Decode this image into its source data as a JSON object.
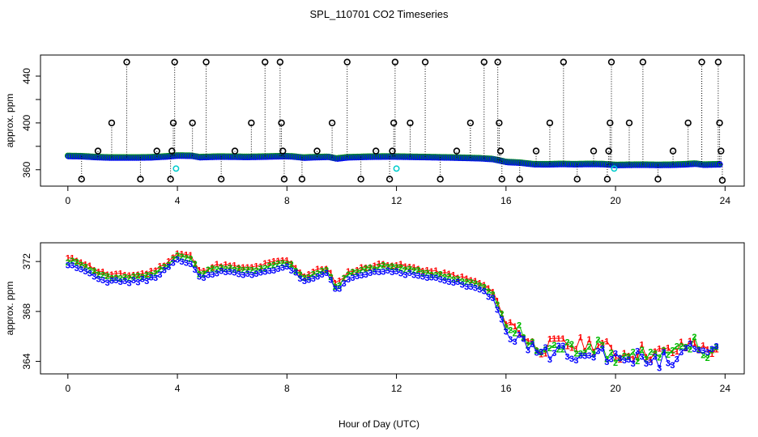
{
  "figure": {
    "title": "SPL_110701  CO2 Timeseries",
    "xlabel": "Hour of Day (UTC)"
  },
  "chart_data": [
    {
      "id": "top",
      "type": "scatter",
      "ylabel": "approx. ppm",
      "xlim": [
        -1.0,
        24.7
      ],
      "ylim": [
        346,
        458
      ],
      "x_ticks": [
        0,
        4,
        8,
        12,
        16,
        20,
        24
      ],
      "y_ticks": [
        360,
        400,
        440
      ],
      "y_minor_ticks": [
        380,
        420
      ],
      "baseline": 372,
      "spikes_high": [
        [
          1.1,
          376
        ],
        [
          1.6,
          400
        ],
        [
          2.15,
          452
        ],
        [
          3.25,
          376
        ],
        [
          3.8,
          376
        ],
        [
          3.85,
          400
        ],
        [
          3.9,
          452
        ],
        [
          4.55,
          400
        ],
        [
          5.05,
          452
        ],
        [
          6.1,
          376
        ],
        [
          6.7,
          400
        ],
        [
          7.2,
          452
        ],
        [
          7.75,
          452
        ],
        [
          7.8,
          400
        ],
        [
          7.85,
          376
        ],
        [
          9.1,
          376
        ],
        [
          9.65,
          400
        ],
        [
          10.2,
          452
        ],
        [
          11.25,
          376
        ],
        [
          11.85,
          376
        ],
        [
          11.9,
          400
        ],
        [
          11.95,
          452
        ],
        [
          12.5,
          400
        ],
        [
          13.05,
          452
        ],
        [
          14.2,
          376
        ],
        [
          14.7,
          400
        ],
        [
          15.2,
          452
        ],
        [
          15.7,
          452
        ],
        [
          15.75,
          400
        ],
        [
          15.8,
          376
        ],
        [
          17.1,
          376
        ],
        [
          17.6,
          400
        ],
        [
          18.1,
          452
        ],
        [
          19.2,
          376
        ],
        [
          19.75,
          376
        ],
        [
          19.8,
          400
        ],
        [
          19.85,
          452
        ],
        [
          20.5,
          400
        ],
        [
          21.0,
          452
        ],
        [
          22.1,
          376
        ],
        [
          22.65,
          400
        ],
        [
          23.15,
          452
        ],
        [
          23.75,
          452
        ],
        [
          23.8,
          400
        ],
        [
          23.85,
          376
        ]
      ],
      "spikes_low": [
        [
          0.5,
          352
        ],
        [
          2.65,
          352
        ],
        [
          3.75,
          352
        ],
        [
          5.6,
          352
        ],
        [
          7.9,
          352
        ],
        [
          8.55,
          352
        ],
        [
          10.7,
          352
        ],
        [
          11.75,
          352
        ],
        [
          13.6,
          352
        ],
        [
          15.85,
          352
        ],
        [
          16.5,
          352
        ],
        [
          18.6,
          352
        ],
        [
          19.7,
          352
        ],
        [
          21.55,
          352
        ],
        [
          23.9,
          351
        ]
      ],
      "cyan_points": [
        [
          3.95,
          361
        ],
        [
          12.0,
          361
        ],
        [
          19.95,
          361
        ]
      ]
    },
    {
      "id": "bottom",
      "type": "line",
      "ylabel": "approx. ppm",
      "xlim": [
        -1.0,
        24.7
      ],
      "ylim": [
        363.0,
        373.5
      ],
      "x_ticks": [
        0,
        4,
        8,
        12,
        16,
        20,
        24
      ],
      "y_ticks": [
        364,
        368,
        372
      ],
      "series": [
        {
          "name": "1",
          "color": "#ff0000",
          "offset": 0.35
        },
        {
          "name": "2",
          "color": "#00bb00",
          "offset": 0.15
        },
        {
          "name": "3",
          "color": "#0000ff",
          "offset": -0.2
        }
      ],
      "trend": {
        "x": [
          0,
          0.5,
          1.0,
          1.5,
          2.0,
          2.5,
          3.0,
          3.5,
          4.0,
          4.5,
          4.8,
          5.5,
          6.0,
          6.5,
          7.0,
          7.5,
          7.9,
          8.2,
          8.6,
          9.0,
          9.5,
          9.8,
          10.2,
          11.0,
          11.7,
          12.0,
          13.0,
          14.0,
          14.5,
          15.0,
          15.5,
          16.0,
          16.5,
          17.0,
          17.5,
          18.0,
          18.5,
          19.0,
          19.5,
          20.0,
          20.5,
          21.0,
          21.5,
          22.0,
          22.5,
          22.9,
          23.2,
          23.7
        ],
        "y": [
          371.9,
          371.7,
          371.0,
          370.6,
          370.6,
          370.6,
          370.8,
          371.4,
          372.3,
          372.1,
          370.9,
          371.4,
          371.3,
          371.1,
          371.3,
          371.6,
          371.8,
          371.5,
          370.5,
          370.9,
          371.2,
          369.7,
          370.8,
          371.3,
          371.5,
          371.4,
          371.0,
          370.6,
          370.3,
          370.0,
          369.3,
          366.8,
          366.2,
          364.9,
          364.8,
          365.1,
          364.9,
          365.1,
          365.0,
          364.2,
          364.4,
          364.5,
          364.3,
          364.4,
          364.8,
          365.4,
          364.5,
          364.8
        ]
      }
    }
  ]
}
